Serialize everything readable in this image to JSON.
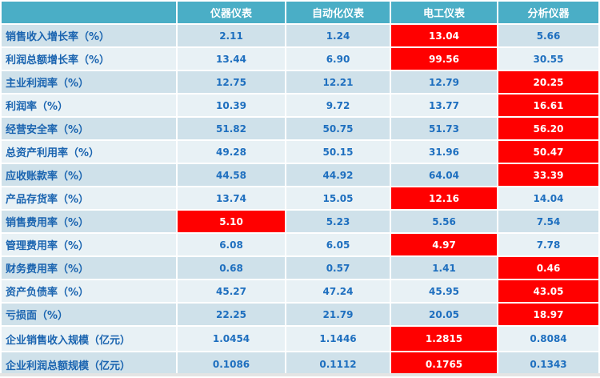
{
  "columns": [
    "",
    "仪器仪表",
    "自动化仪表",
    "电工仪表",
    "分析仪器"
  ],
  "colors": {
    "header": "#4aaec6",
    "highlight": "#ff0000",
    "text": "#1e6fbf"
  },
  "rows": [
    {
      "label": "销售收入增长率（%）",
      "values": [
        "2.11",
        "1.24",
        "13.04",
        "5.66"
      ],
      "highlight": [
        2
      ]
    },
    {
      "label": "利润总额增长率（%）",
      "values": [
        "13.44",
        "6.90",
        "99.56",
        "30.55"
      ],
      "highlight": [
        2
      ]
    },
    {
      "label": "主业利润率（%）",
      "values": [
        "12.75",
        "12.21",
        "12.79",
        "20.25"
      ],
      "highlight": [
        3
      ]
    },
    {
      "label": "利润率（%）",
      "values": [
        "10.39",
        "9.72",
        "13.77",
        "16.61"
      ],
      "highlight": [
        3
      ]
    },
    {
      "label": "经营安全率（%）",
      "values": [
        "51.82",
        "50.75",
        "51.73",
        "56.20"
      ],
      "highlight": [
        3
      ]
    },
    {
      "label": "总资产利用率（%）",
      "values": [
        "49.28",
        "50.15",
        "31.96",
        "50.47"
      ],
      "highlight": [
        3
      ]
    },
    {
      "label": "应收账款率（%）",
      "values": [
        "44.58",
        "44.92",
        "64.04",
        "33.39"
      ],
      "highlight": [
        3
      ]
    },
    {
      "label": "产品存货率（%）",
      "values": [
        "13.74",
        "15.05",
        "12.16",
        "14.04"
      ],
      "highlight": [
        2
      ]
    },
    {
      "label": "销售费用率（%）",
      "values": [
        "5.10",
        "5.23",
        "5.56",
        "7.54"
      ],
      "highlight": [
        0
      ]
    },
    {
      "label": "管理费用率（%）",
      "values": [
        "6.08",
        "6.05",
        "4.97",
        "7.78"
      ],
      "highlight": [
        2
      ]
    },
    {
      "label": "财务费用率（%）",
      "values": [
        "0.68",
        "0.57",
        "1.41",
        "0.46"
      ],
      "highlight": [
        3
      ]
    },
    {
      "label": "资产负债率（%）",
      "values": [
        "45.27",
        "47.24",
        "45.95",
        "43.05"
      ],
      "highlight": [
        3
      ]
    },
    {
      "label": "亏损面（%）",
      "values": [
        "22.25",
        "21.79",
        "20.05",
        "18.97"
      ],
      "highlight": [
        3
      ]
    },
    {
      "label": "企业销售收入规模（亿元）",
      "values": [
        "1.0454",
        "1.1446",
        "1.2815",
        "0.8084"
      ],
      "highlight": [
        2
      ]
    },
    {
      "label": "企业利润总额规模（亿元）",
      "values": [
        "0.1086",
        "0.1112",
        "0.1765",
        "0.1343"
      ],
      "highlight": [
        2
      ]
    }
  ]
}
